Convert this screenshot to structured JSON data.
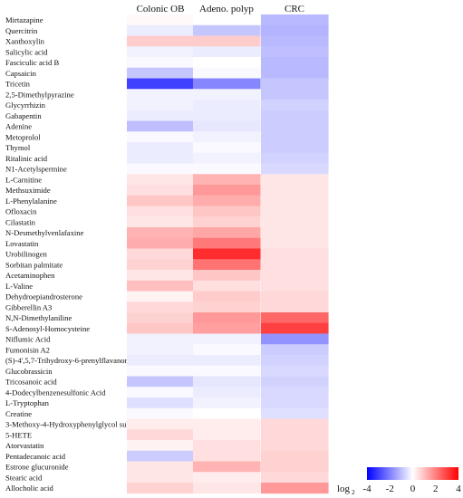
{
  "chart_data": {
    "type": "heatmap",
    "columns": [
      "Colonic OB",
      "Adeno. polyp",
      "CRC"
    ],
    "rows": [
      {
        "name": "Mirtazapine",
        "values": [
          0.1,
          0.0,
          -1.1
        ]
      },
      {
        "name": "Quercitrin",
        "values": [
          -0.3,
          -0.9,
          -1.2
        ]
      },
      {
        "name": "Xanthoxylin",
        "values": [
          0.8,
          0.8,
          -1.1
        ]
      },
      {
        "name": "Salicylic acid",
        "values": [
          -0.2,
          -0.3,
          -1.0
        ]
      },
      {
        "name": "Fasciculic acid B",
        "values": [
          -0.1,
          0.0,
          -1.1
        ]
      },
      {
        "name": "Capsaicin",
        "values": [
          -0.9,
          -0.1,
          -1.1
        ]
      },
      {
        "name": "Tricetin",
        "values": [
          -3.0,
          -1.9,
          -0.9
        ]
      },
      {
        "name": "2,5-Dimethylpyrazine",
        "values": [
          -0.2,
          -0.2,
          -0.9
        ]
      },
      {
        "name": "Glycyrrhizin",
        "values": [
          -0.2,
          -0.3,
          -0.7
        ]
      },
      {
        "name": "Gabapentin",
        "values": [
          -0.3,
          -0.3,
          -0.8
        ]
      },
      {
        "name": "Adenine",
        "values": [
          -1.0,
          -0.4,
          -0.8
        ]
      },
      {
        "name": "Metoprolol",
        "values": [
          -0.1,
          -0.2,
          -0.8
        ]
      },
      {
        "name": "Thymol",
        "values": [
          -0.3,
          -0.1,
          -0.8
        ]
      },
      {
        "name": "Ritalinic acid",
        "values": [
          -0.3,
          -0.2,
          -0.7
        ]
      },
      {
        "name": "N1-Acetylspermine",
        "values": [
          -0.1,
          -0.1,
          -0.6
        ]
      },
      {
        "name": "L-Carnitine",
        "values": [
          0.4,
          1.2,
          0.4
        ]
      },
      {
        "name": "Methsuximide",
        "values": [
          0.5,
          1.6,
          0.4
        ]
      },
      {
        "name": "L-Phenylalanine",
        "values": [
          0.9,
          1.3,
          0.4
        ]
      },
      {
        "name": "Ofloxacin",
        "values": [
          0.5,
          0.9,
          0.4
        ]
      },
      {
        "name": "Cilastatin",
        "values": [
          0.4,
          0.7,
          0.4
        ]
      },
      {
        "name": "N-Desmethylvenlafaxine",
        "values": [
          1.2,
          1.4,
          0.4
        ]
      },
      {
        "name": "Lovastatin",
        "values": [
          1.3,
          2.1,
          0.4
        ]
      },
      {
        "name": "Urobilinogen",
        "values": [
          0.6,
          3.3,
          0.5
        ]
      },
      {
        "name": "Sorbitan palmitate",
        "values": [
          0.7,
          2.2,
          0.5
        ]
      },
      {
        "name": "Acetaminophen",
        "values": [
          0.4,
          0.9,
          0.5
        ]
      },
      {
        "name": "L-Valine",
        "values": [
          1.0,
          0.5,
          0.5
        ]
      },
      {
        "name": "Dehydroepiandrosterone",
        "values": [
          0.2,
          0.8,
          0.6
        ]
      },
      {
        "name": "Gibberellin A3",
        "values": [
          0.6,
          0.7,
          0.6
        ]
      },
      {
        "name": "N,N-Dimethylaniline",
        "values": [
          0.7,
          1.6,
          2.4
        ]
      },
      {
        "name": "S-Adenosyl-Homocysteine",
        "values": [
          0.9,
          1.5,
          3.0
        ]
      },
      {
        "name": "Niflumic Acid",
        "values": [
          -0.2,
          -0.2,
          -1.7
        ]
      },
      {
        "name": "Fumonisin A2",
        "values": [
          -0.2,
          -0.1,
          -0.8
        ]
      },
      {
        "name": "(S)-4',5,7-Trihydroxy-6-prenylflavanone",
        "values": [
          -0.3,
          -0.3,
          -0.7
        ]
      },
      {
        "name": "Glucobrassicin",
        "values": [
          -0.1,
          -0.1,
          -0.6
        ]
      },
      {
        "name": "Tricosanoic acid",
        "values": [
          -0.9,
          -0.4,
          -0.7
        ]
      },
      {
        "name": "4-Dodecylbenzenesulfonic Acid",
        "values": [
          -0.1,
          -0.3,
          -0.6
        ]
      },
      {
        "name": "L-Tryptophan",
        "values": [
          -0.5,
          -0.2,
          -0.6
        ]
      },
      {
        "name": "Creatine",
        "values": [
          -0.1,
          0.0,
          -0.5
        ]
      },
      {
        "name": "3-Methoxy-4-Hydroxyphenylglycol sulfate",
        "values": [
          0.3,
          0.3,
          0.6
        ]
      },
      {
        "name": "5-HETE",
        "values": [
          0.6,
          0.3,
          0.6
        ]
      },
      {
        "name": "Atorvastatin",
        "values": [
          0.2,
          0.5,
          0.6
        ]
      },
      {
        "name": "Pentadecanoic acid",
        "values": [
          -0.8,
          0.5,
          0.7
        ]
      },
      {
        "name": "Estrone glucuronide",
        "values": [
          0.4,
          1.2,
          0.7
        ]
      },
      {
        "name": "Stearic acid",
        "values": [
          0.4,
          0.3,
          0.6
        ]
      },
      {
        "name": "Allocholic acid",
        "values": [
          0.7,
          0.4,
          1.6
        ]
      }
    ],
    "color_scale": {
      "label": "log",
      "label_subscript": "2",
      "min": -4,
      "max": 4,
      "ticks": [
        -4,
        -2,
        0,
        2,
        4
      ],
      "low_color": "#0000ff",
      "mid_color": "#ffffff",
      "high_color": "#ff0000"
    },
    "legend_position": "bottom-right",
    "grid": false
  }
}
